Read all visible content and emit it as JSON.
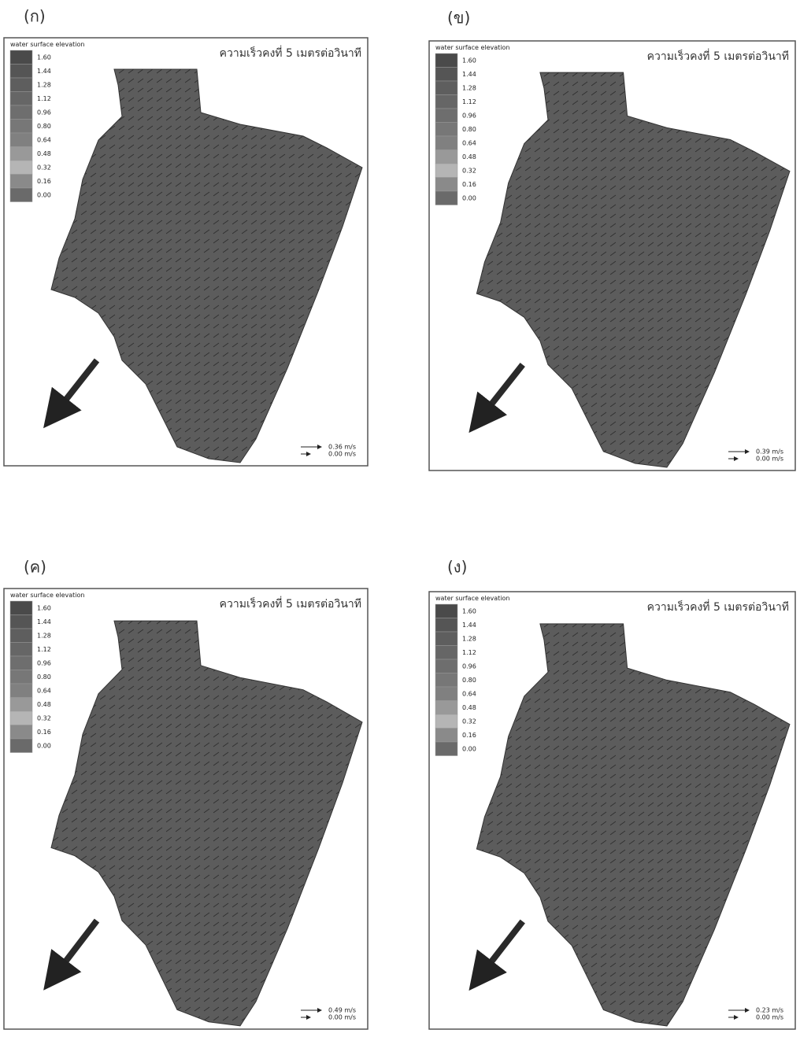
{
  "panels": [
    {
      "label": "(ก)",
      "legend_title": "water surface elevation",
      "legend_values": [
        "1.60",
        "1.44",
        "1.28",
        "1.12",
        "0.96",
        "0.80",
        "0.64",
        "0.48",
        "0.32",
        "0.16",
        "0.00"
      ],
      "note": "ความเร็วคงที่ 5 เมตรต่อวินาที",
      "scale": [
        "0.36 m/s",
        "0.00 m/s"
      ]
    },
    {
      "label": "(ข)",
      "legend_title": "water surface elevation",
      "legend_values": [
        "1.60",
        "1.44",
        "1.28",
        "1.12",
        "0.96",
        "0.80",
        "0.64",
        "0.48",
        "0.32",
        "0.16",
        "0.00"
      ],
      "note": "ความเร็วคงที่ 5 เมตรต่อวินาที",
      "scale": [
        "0.39 m/s",
        "0.00 m/s"
      ]
    },
    {
      "label": "(ค)",
      "legend_title": "water surface elevation",
      "legend_values": [
        "1.60",
        "1.44",
        "1.28",
        "1.12",
        "0.96",
        "0.80",
        "0.64",
        "0.48",
        "0.32",
        "0.16",
        "0.00"
      ],
      "note": "ความเร็วคงที่ 5 เมตรต่อวินาที",
      "scale": [
        "0.49 m/s",
        "0.00 m/s"
      ]
    },
    {
      "label": "(ง)",
      "legend_title": "water surface elevation",
      "legend_values": [
        "1.60",
        "1.44",
        "1.28",
        "1.12",
        "0.96",
        "0.80",
        "0.64",
        "0.48",
        "0.32",
        "0.16",
        "0.00"
      ],
      "note": "ความเร็วคงที่ 5 เมตรต่อวินาที",
      "scale": [
        "0.23 m/s",
        "0.00 m/s"
      ]
    }
  ]
}
